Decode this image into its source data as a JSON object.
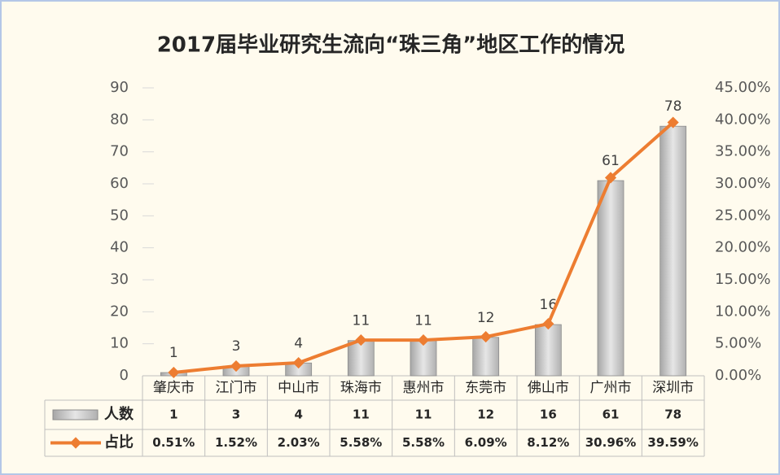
{
  "chart_data": {
    "type": "combo",
    "title": "2017届毕业研究生流向“珠三角”地区工作的情况",
    "categories": [
      "肇庆市",
      "江门市",
      "中山市",
      "珠海市",
      "惠州市",
      "东莞市",
      "佛山市",
      "广州市",
      "深圳市"
    ],
    "series": [
      {
        "name": "人数",
        "type": "bar",
        "color": "#c0c0c0",
        "values": [
          1,
          3,
          4,
          11,
          11,
          12,
          16,
          61,
          78
        ]
      },
      {
        "name": "占比",
        "type": "line",
        "axis": "y2",
        "color": "#ed7d31",
        "values": [
          0.51,
          1.52,
          2.03,
          5.58,
          5.58,
          6.09,
          8.12,
          30.96,
          39.59
        ],
        "value_labels": [
          "0.51%",
          "1.52%",
          "2.03%",
          "5.58%",
          "5.58%",
          "6.09%",
          "8.12%",
          "30.96%",
          "39.59%"
        ]
      }
    ],
    "ylim": [
      0,
      90
    ],
    "yticks": [
      0,
      10,
      20,
      30,
      40,
      50,
      60,
      70,
      80,
      90
    ],
    "y2lim": [
      0,
      45
    ],
    "y2ticks": [
      {
        "value": 0,
        "label": "0.00%"
      },
      {
        "value": 5,
        "label": "5.00%"
      },
      {
        "value": 10,
        "label": "10.00%"
      },
      {
        "value": 15,
        "label": "15.00%"
      },
      {
        "value": 20,
        "label": "20.00%"
      },
      {
        "value": 25,
        "label": "25.00%"
      },
      {
        "value": 30,
        "label": "30.00%"
      },
      {
        "value": 35,
        "label": "35.00%"
      },
      {
        "value": 40,
        "label": "40.00%"
      },
      {
        "value": 45,
        "label": "45.00%"
      }
    ],
    "data_table": true
  }
}
